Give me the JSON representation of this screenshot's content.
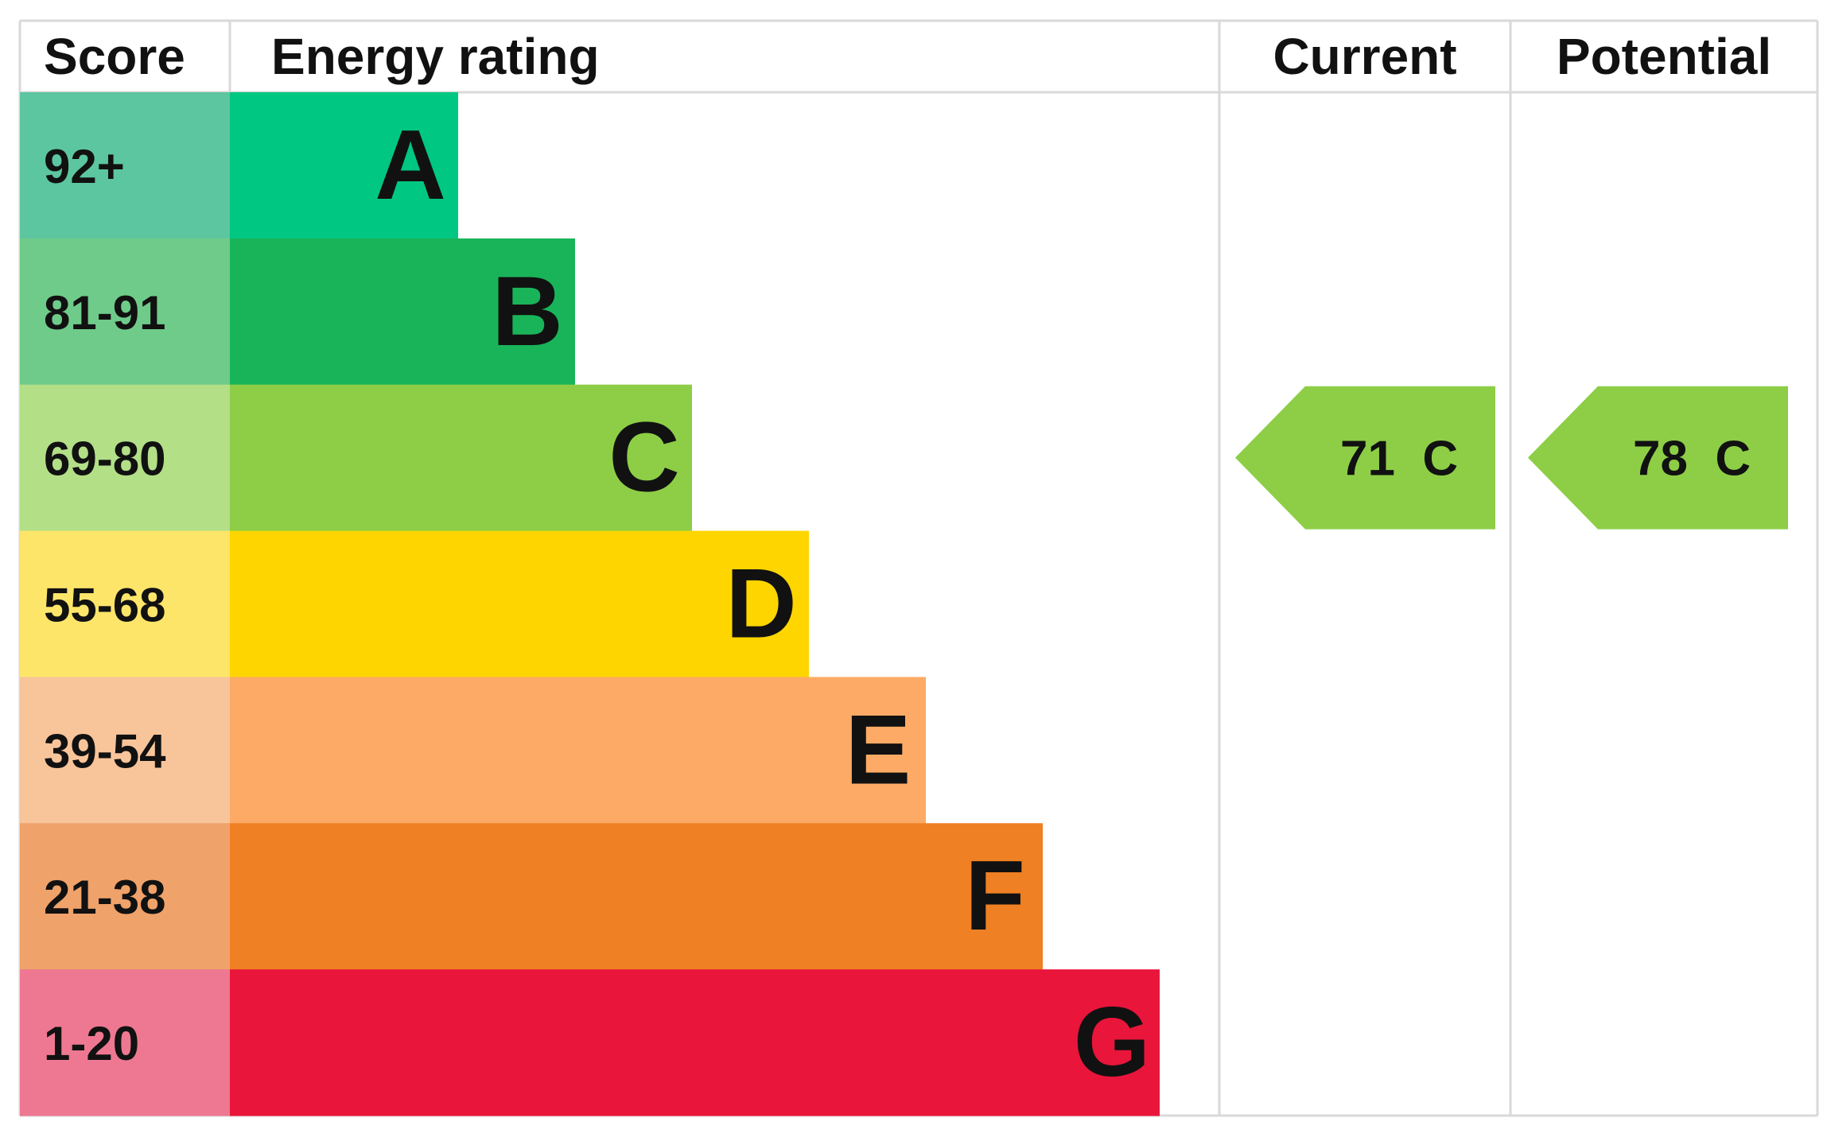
{
  "chart_data": {
    "type": "bar",
    "headers": {
      "score": "Score",
      "rating": "Energy rating",
      "current": "Current",
      "potential": "Potential"
    },
    "bands": [
      {
        "score": "92+",
        "letter": "A",
        "color": "#00c781",
        "score_color": "#5cc6a0"
      },
      {
        "score": "81-91",
        "letter": "B",
        "color": "#19b459",
        "score_color": "#6fcb8a"
      },
      {
        "score": "69-80",
        "letter": "C",
        "color": "#8dce46",
        "score_color": "#b3df87"
      },
      {
        "score": "55-68",
        "letter": "D",
        "color": "#ffd500",
        "score_color": "#fde56a"
      },
      {
        "score": "39-54",
        "letter": "E",
        "color": "#fcaa65",
        "score_color": "#f8c49a"
      },
      {
        "score": "21-38",
        "letter": "F",
        "color": "#ef8023",
        "score_color": "#efa26a"
      },
      {
        "score": "1-20",
        "letter": "G",
        "color": "#e9153b",
        "score_color": "#ee7891"
      }
    ],
    "current": {
      "value": 71,
      "band": "C",
      "label": "71  C"
    },
    "potential": {
      "value": 78,
      "band": "C",
      "label": "78  C"
    },
    "grid_color": "#d9d9d9"
  }
}
